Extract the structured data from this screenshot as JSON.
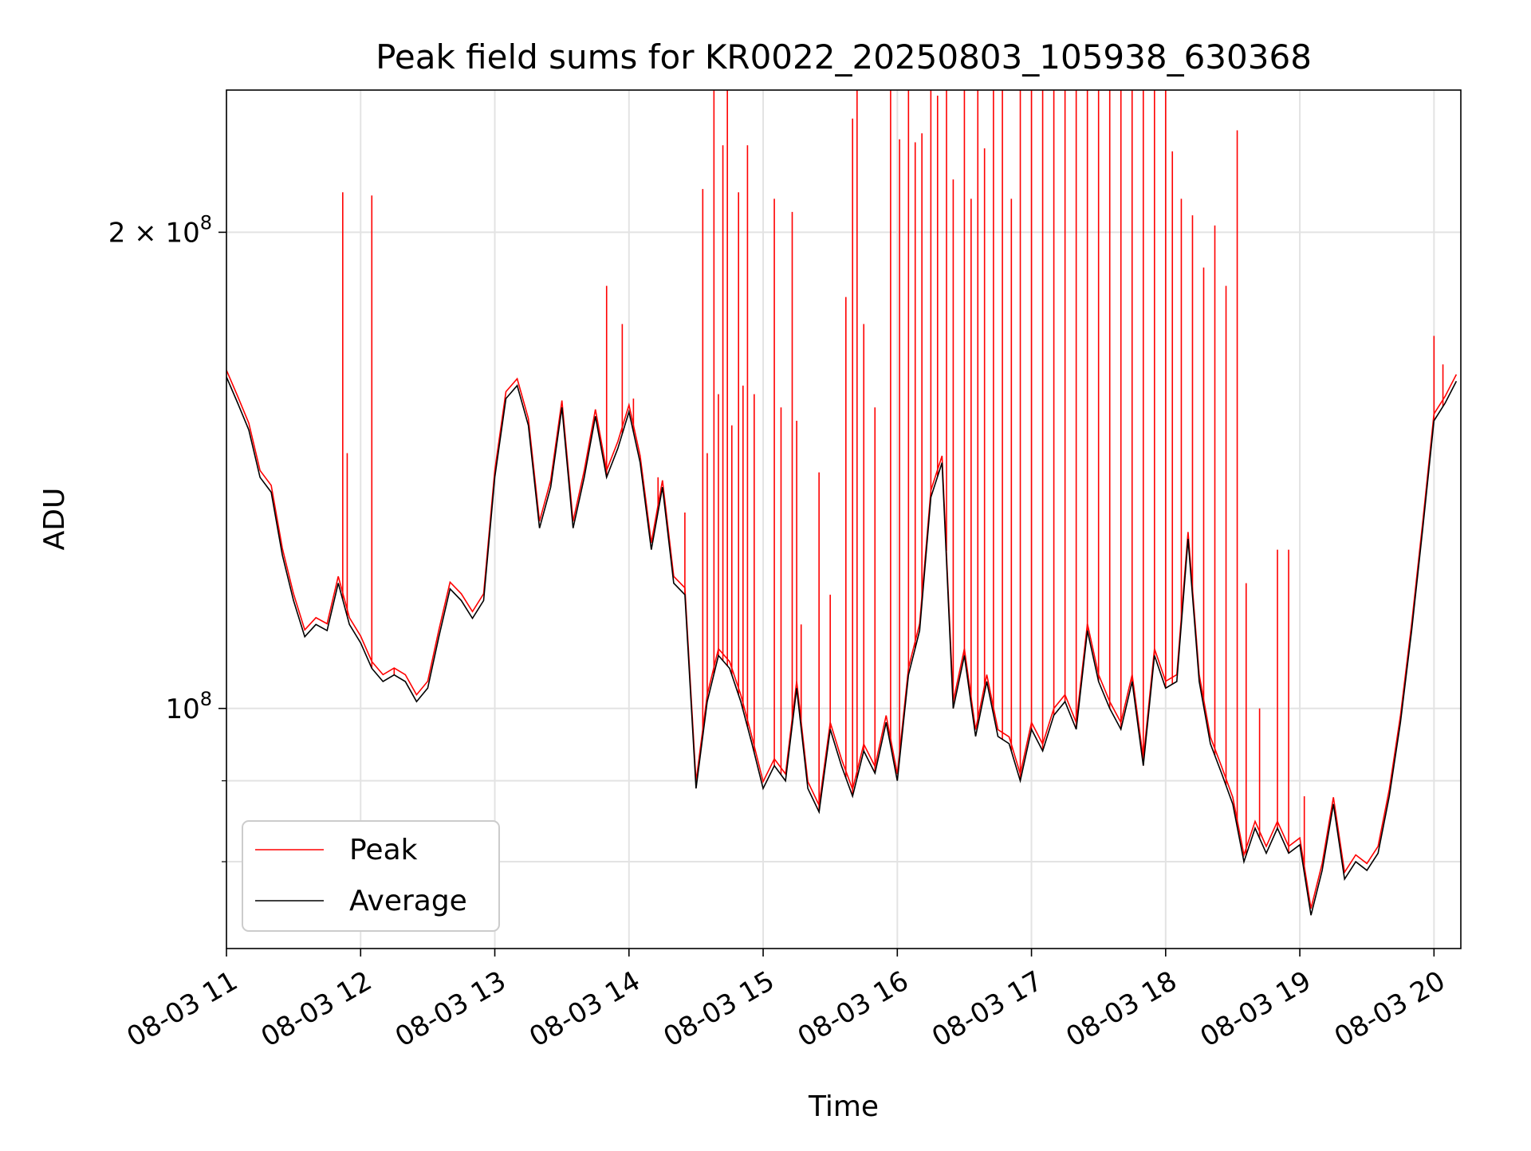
{
  "chart_data": {
    "type": "line",
    "title": "Peak field sums for KR0022_20250803_105938_630368",
    "xlabel": "Time",
    "ylabel": "ADU",
    "y_scale": "log",
    "ylim": [
      70500000,
      246000000
    ],
    "xlim": [
      "2025-08-03 11:00",
      "2025-08-03 20:12"
    ],
    "grid": true,
    "legend_position": "lower-left",
    "x_ticks": [
      {
        "label": "08-03 11",
        "x": "2025-08-03 11:00"
      },
      {
        "label": "08-03 12",
        "x": "2025-08-03 12:00"
      },
      {
        "label": "08-03 13",
        "x": "2025-08-03 13:00"
      },
      {
        "label": "08-03 14",
        "x": "2025-08-03 14:00"
      },
      {
        "label": "08-03 15",
        "x": "2025-08-03 15:00"
      },
      {
        "label": "08-03 16",
        "x": "2025-08-03 16:00"
      },
      {
        "label": "08-03 17",
        "x": "2025-08-03 17:00"
      },
      {
        "label": "08-03 18",
        "x": "2025-08-03 18:00"
      },
      {
        "label": "08-03 19",
        "x": "2025-08-03 19:00"
      },
      {
        "label": "08-03 20",
        "x": "2025-08-03 20:00"
      }
    ],
    "y_major_ticks": [
      {
        "value": 100000000,
        "label": "10",
        "exponent": "8",
        "prefix": ""
      },
      {
        "value": 200000000,
        "label": "10",
        "exponent": "8",
        "prefix": "2 × "
      }
    ],
    "y_minor_ticks": [
      80000000,
      90000000
    ],
    "series": [
      {
        "name": "Average",
        "color": "#000000",
        "points": [
          [
            "2025-08-03 11:00",
            162000000
          ],
          [
            "2025-08-03 11:05",
            156000000
          ],
          [
            "2025-08-03 11:10",
            150000000
          ],
          [
            "2025-08-03 11:15",
            140000000
          ],
          [
            "2025-08-03 11:20",
            137000000
          ],
          [
            "2025-08-03 11:25",
            125000000
          ],
          [
            "2025-08-03 11:30",
            117000000
          ],
          [
            "2025-08-03 11:35",
            111000000
          ],
          [
            "2025-08-03 11:40",
            113000000
          ],
          [
            "2025-08-03 11:45",
            112000000
          ],
          [
            "2025-08-03 11:50",
            120000000
          ],
          [
            "2025-08-03 11:55",
            113000000
          ],
          [
            "2025-08-03 12:00",
            110000000
          ],
          [
            "2025-08-03 12:05",
            106000000
          ],
          [
            "2025-08-03 12:10",
            104000000
          ],
          [
            "2025-08-03 12:15",
            105000000
          ],
          [
            "2025-08-03 12:20",
            104000000
          ],
          [
            "2025-08-03 12:25",
            101000000
          ],
          [
            "2025-08-03 12:30",
            103000000
          ],
          [
            "2025-08-03 12:35",
            111000000
          ],
          [
            "2025-08-03 12:40",
            119000000
          ],
          [
            "2025-08-03 12:45",
            117000000
          ],
          [
            "2025-08-03 12:50",
            114000000
          ],
          [
            "2025-08-03 12:55",
            117000000
          ],
          [
            "2025-08-03 13:00",
            140000000
          ],
          [
            "2025-08-03 13:05",
            157000000
          ],
          [
            "2025-08-03 13:10",
            160000000
          ],
          [
            "2025-08-03 13:15",
            151000000
          ],
          [
            "2025-08-03 13:20",
            130000000
          ],
          [
            "2025-08-03 13:25",
            138000000
          ],
          [
            "2025-08-03 13:30",
            155000000
          ],
          [
            "2025-08-03 13:35",
            130000000
          ],
          [
            "2025-08-03 13:40",
            140000000
          ],
          [
            "2025-08-03 13:45",
            153000000
          ],
          [
            "2025-08-03 13:50",
            140000000
          ],
          [
            "2025-08-03 13:55",
            146000000
          ],
          [
            "2025-08-03 14:00",
            154000000
          ],
          [
            "2025-08-03 14:05",
            143000000
          ],
          [
            "2025-08-03 14:10",
            126000000
          ],
          [
            "2025-08-03 14:15",
            138000000
          ],
          [
            "2025-08-03 14:20",
            120000000
          ],
          [
            "2025-08-03 14:25",
            118000000
          ],
          [
            "2025-08-03 14:30",
            89000000
          ],
          [
            "2025-08-03 14:35",
            101000000
          ],
          [
            "2025-08-03 14:40",
            108000000
          ],
          [
            "2025-08-03 14:45",
            106000000
          ],
          [
            "2025-08-03 14:50",
            101000000
          ],
          [
            "2025-08-03 14:55",
            95000000
          ],
          [
            "2025-08-03 15:00",
            89000000
          ],
          [
            "2025-08-03 15:05",
            92000000
          ],
          [
            "2025-08-03 15:10",
            90000000
          ],
          [
            "2025-08-03 15:15",
            103000000
          ],
          [
            "2025-08-03 15:20",
            89000000
          ],
          [
            "2025-08-03 15:25",
            86000000
          ],
          [
            "2025-08-03 15:30",
            97000000
          ],
          [
            "2025-08-03 15:35",
            92000000
          ],
          [
            "2025-08-03 15:40",
            88000000
          ],
          [
            "2025-08-03 15:45",
            94000000
          ],
          [
            "2025-08-03 15:50",
            91000000
          ],
          [
            "2025-08-03 15:55",
            98000000
          ],
          [
            "2025-08-03 16:00",
            90000000
          ],
          [
            "2025-08-03 16:05",
            105000000
          ],
          [
            "2025-08-03 16:10",
            112000000
          ],
          [
            "2025-08-03 16:15",
            136000000
          ],
          [
            "2025-08-03 16:20",
            143000000
          ],
          [
            "2025-08-03 16:25",
            100000000
          ],
          [
            "2025-08-03 16:30",
            108000000
          ],
          [
            "2025-08-03 16:35",
            96000000
          ],
          [
            "2025-08-03 16:40",
            104000000
          ],
          [
            "2025-08-03 16:45",
            96000000
          ],
          [
            "2025-08-03 16:50",
            95000000
          ],
          [
            "2025-08-03 16:55",
            90000000
          ],
          [
            "2025-08-03 17:00",
            97000000
          ],
          [
            "2025-08-03 17:05",
            94000000
          ],
          [
            "2025-08-03 17:10",
            99000000
          ],
          [
            "2025-08-03 17:15",
            101000000
          ],
          [
            "2025-08-03 17:20",
            97000000
          ],
          [
            "2025-08-03 17:25",
            112000000
          ],
          [
            "2025-08-03 17:30",
            104000000
          ],
          [
            "2025-08-03 17:35",
            100000000
          ],
          [
            "2025-08-03 17:40",
            97000000
          ],
          [
            "2025-08-03 17:45",
            104000000
          ],
          [
            "2025-08-03 17:50",
            92000000
          ],
          [
            "2025-08-03 17:55",
            108000000
          ],
          [
            "2025-08-03 18:00",
            103000000
          ],
          [
            "2025-08-03 18:05",
            104000000
          ],
          [
            "2025-08-03 18:10",
            128000000
          ],
          [
            "2025-08-03 18:15",
            104000000
          ],
          [
            "2025-08-03 18:20",
            95000000
          ],
          [
            "2025-08-03 18:25",
            91000000
          ],
          [
            "2025-08-03 18:30",
            87000000
          ],
          [
            "2025-08-03 18:35",
            80000000
          ],
          [
            "2025-08-03 18:40",
            84000000
          ],
          [
            "2025-08-03 18:45",
            81000000
          ],
          [
            "2025-08-03 18:50",
            84000000
          ],
          [
            "2025-08-03 18:55",
            81000000
          ],
          [
            "2025-08-03 19:00",
            82000000
          ],
          [
            "2025-08-03 19:05",
            74000000
          ],
          [
            "2025-08-03 19:10",
            79000000
          ],
          [
            "2025-08-03 19:15",
            87000000
          ],
          [
            "2025-08-03 19:20",
            78000000
          ],
          [
            "2025-08-03 19:25",
            80000000
          ],
          [
            "2025-08-03 19:30",
            79000000
          ],
          [
            "2025-08-03 19:35",
            81000000
          ],
          [
            "2025-08-03 19:40",
            88000000
          ],
          [
            "2025-08-03 19:45",
            98000000
          ],
          [
            "2025-08-03 19:50",
            112000000
          ],
          [
            "2025-08-03 19:55",
            130000000
          ],
          [
            "2025-08-03 20:00",
            152000000
          ],
          [
            "2025-08-03 20:05",
            156000000
          ],
          [
            "2025-08-03 20:10",
            161000000
          ]
        ]
      },
      {
        "name": "Peak",
        "color": "#ff0000",
        "spikes": [
          [
            "2025-08-03 11:52",
            212000000
          ],
          [
            "2025-08-03 11:54",
            145000000
          ],
          [
            "2025-08-03 12:05",
            211000000
          ],
          [
            "2025-08-03 12:15",
            106000000
          ],
          [
            "2025-08-03 13:50",
            185000000
          ],
          [
            "2025-08-03 13:57",
            175000000
          ],
          [
            "2025-08-03 14:02",
            157000000
          ],
          [
            "2025-08-03 14:13",
            140000000
          ],
          [
            "2025-08-03 14:25",
            133000000
          ],
          [
            "2025-08-03 14:33",
            213000000
          ],
          [
            "2025-08-03 14:35",
            145000000
          ],
          [
            "2025-08-03 14:38",
            246000000
          ],
          [
            "2025-08-03 14:40",
            158000000
          ],
          [
            "2025-08-03 14:42",
            227000000
          ],
          [
            "2025-08-03 14:44",
            246000000
          ],
          [
            "2025-08-03 14:46",
            151000000
          ],
          [
            "2025-08-03 14:49",
            212000000
          ],
          [
            "2025-08-03 14:51",
            160000000
          ],
          [
            "2025-08-03 14:53",
            227000000
          ],
          [
            "2025-08-03 14:56",
            158000000
          ],
          [
            "2025-08-03 15:05",
            210000000
          ],
          [
            "2025-08-03 15:08",
            155000000
          ],
          [
            "2025-08-03 15:13",
            206000000
          ],
          [
            "2025-08-03 15:15",
            152000000
          ],
          [
            "2025-08-03 15:17",
            113000000
          ],
          [
            "2025-08-03 15:25",
            141000000
          ],
          [
            "2025-08-03 15:30",
            118000000
          ],
          [
            "2025-08-03 15:37",
            182000000
          ],
          [
            "2025-08-03 15:40",
            236000000
          ],
          [
            "2025-08-03 15:42",
            246000000
          ],
          [
            "2025-08-03 15:45",
            175000000
          ],
          [
            "2025-08-03 15:50",
            155000000
          ],
          [
            "2025-08-03 15:57",
            246000000
          ],
          [
            "2025-08-03 16:01",
            229000000
          ],
          [
            "2025-08-03 16:05",
            246000000
          ],
          [
            "2025-08-03 16:08",
            228000000
          ],
          [
            "2025-08-03 16:11",
            231000000
          ],
          [
            "2025-08-03 16:15",
            246000000
          ],
          [
            "2025-08-03 16:18",
            244000000
          ],
          [
            "2025-08-03 16:22",
            246000000
          ],
          [
            "2025-08-03 16:25",
            216000000
          ],
          [
            "2025-08-03 16:30",
            246000000
          ],
          [
            "2025-08-03 16:33",
            210000000
          ],
          [
            "2025-08-03 16:36",
            246000000
          ],
          [
            "2025-08-03 16:39",
            226000000
          ],
          [
            "2025-08-03 16:43",
            246000000
          ],
          [
            "2025-08-03 16:47",
            246000000
          ],
          [
            "2025-08-03 16:51",
            210000000
          ],
          [
            "2025-08-03 16:55",
            246000000
          ],
          [
            "2025-08-03 17:00",
            246000000
          ],
          [
            "2025-08-03 17:05",
            246000000
          ],
          [
            "2025-08-03 17:10",
            246000000
          ],
          [
            "2025-08-03 17:15",
            246000000
          ],
          [
            "2025-08-03 17:20",
            246000000
          ],
          [
            "2025-08-03 17:25",
            246000000
          ],
          [
            "2025-08-03 17:30",
            246000000
          ],
          [
            "2025-08-03 17:35",
            246000000
          ],
          [
            "2025-08-03 17:40",
            246000000
          ],
          [
            "2025-08-03 17:45",
            246000000
          ],
          [
            "2025-08-03 17:50",
            246000000
          ],
          [
            "2025-08-03 17:55",
            246000000
          ],
          [
            "2025-08-03 18:00",
            246000000
          ],
          [
            "2025-08-03 18:03",
            225000000
          ],
          [
            "2025-08-03 18:07",
            210000000
          ],
          [
            "2025-08-03 18:12",
            205000000
          ],
          [
            "2025-08-03 18:17",
            190000000
          ],
          [
            "2025-08-03 18:22",
            202000000
          ],
          [
            "2025-08-03 18:27",
            185000000
          ],
          [
            "2025-08-03 18:32",
            232000000
          ],
          [
            "2025-08-03 18:36",
            120000000
          ],
          [
            "2025-08-03 18:42",
            100000000
          ],
          [
            "2025-08-03 18:50",
            126000000
          ],
          [
            "2025-08-03 18:55",
            126000000
          ],
          [
            "2025-08-03 19:02",
            88000000
          ],
          [
            "2025-08-03 20:00",
            172000000
          ],
          [
            "2025-08-03 20:04",
            165000000
          ]
        ]
      }
    ]
  }
}
